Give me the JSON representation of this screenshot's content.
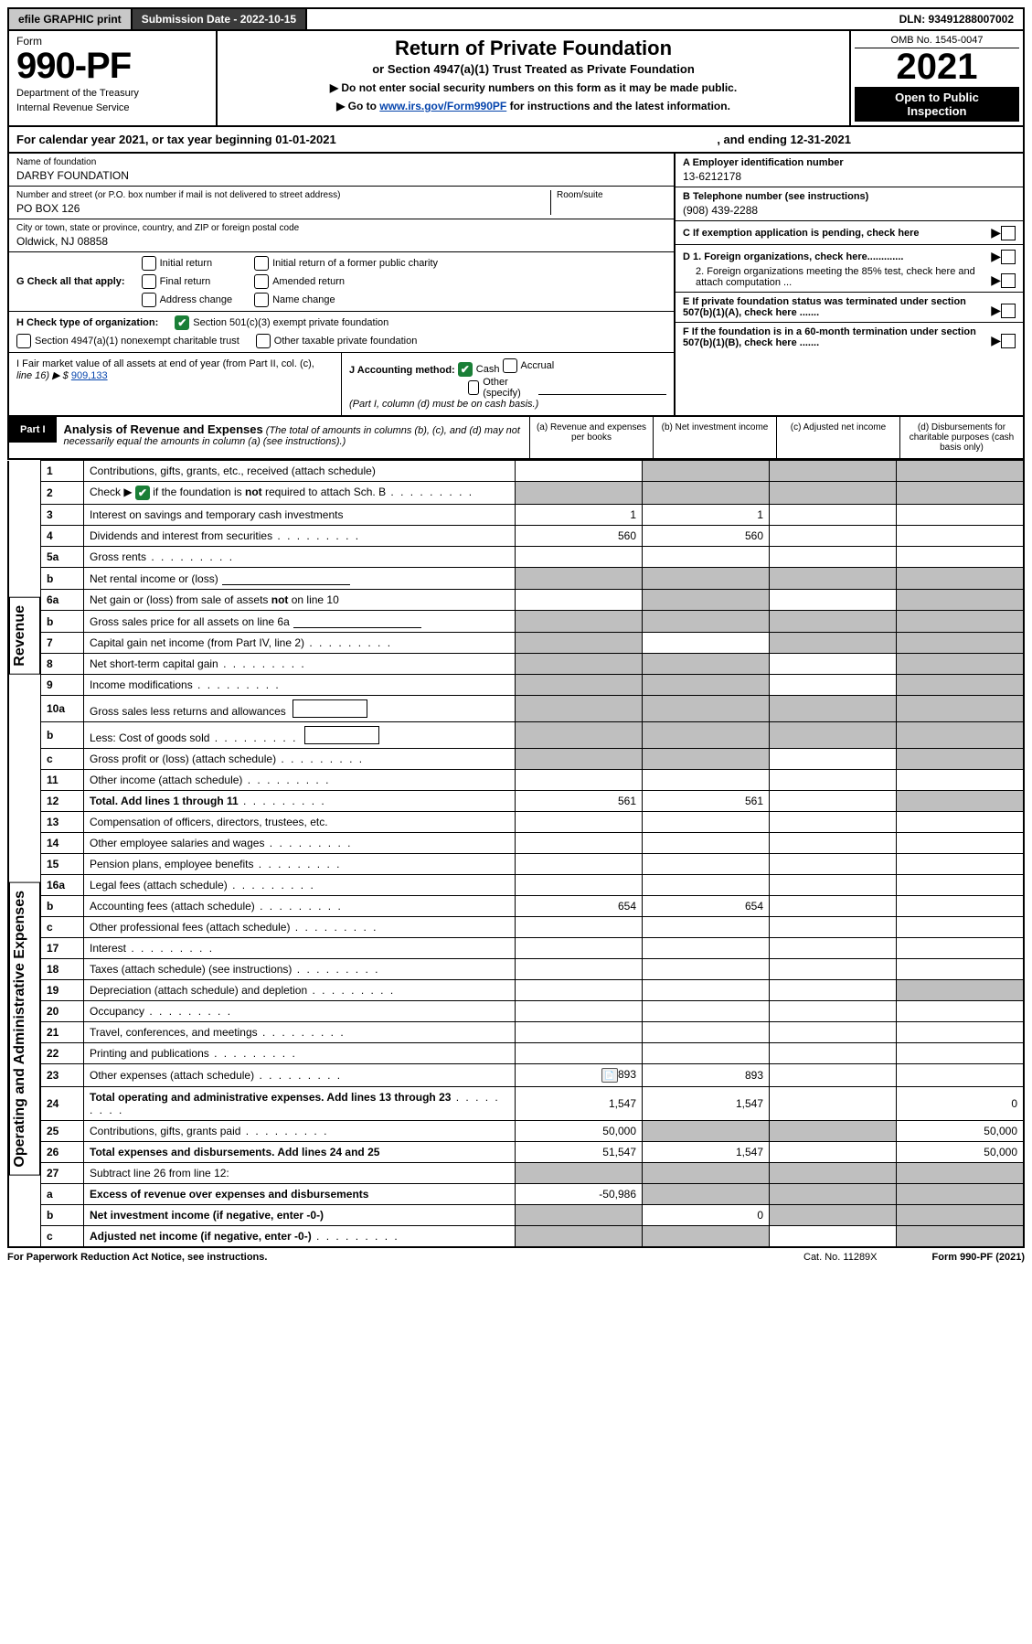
{
  "topbar": {
    "efile": "efile GRAPHIC print",
    "submission_label": "Submission Date - 2022-10-15",
    "dln": "DLN: 93491288007002"
  },
  "header": {
    "form_label": "Form",
    "form_number": "990-PF",
    "dept1": "Department of the Treasury",
    "dept2": "Internal Revenue Service",
    "title": "Return of Private Foundation",
    "subtitle": "or Section 4947(a)(1) Trust Treated as Private Foundation",
    "instr1_pre": "▶ Do not enter social security numbers on this form as it may be made public.",
    "instr2_pre": "▶ Go to ",
    "instr2_link": "www.irs.gov/Form990PF",
    "instr2_post": " for instructions and the latest information.",
    "omb": "OMB No. 1545-0047",
    "year": "2021",
    "open1": "Open to Public",
    "open2": "Inspection"
  },
  "cal": {
    "text": "For calendar year 2021, or tax year beginning 01-01-2021",
    "ending": ", and ending 12-31-2021"
  },
  "info": {
    "name_label": "Name of foundation",
    "name": "DARBY FOUNDATION",
    "addr_label": "Number and street (or P.O. box number if mail is not delivered to street address)",
    "addr": "PO BOX 126",
    "room_label": "Room/suite",
    "city_label": "City or town, state or province, country, and ZIP or foreign postal code",
    "city": "Oldwick, NJ  08858",
    "A_label": "A Employer identification number",
    "A_val": "13-6212178",
    "B_label": "B Telephone number (see instructions)",
    "B_val": "(908) 439-2288",
    "C_label": "C If exemption application is pending, check here",
    "D1_label": "D 1. Foreign organizations, check here.............",
    "D2_label": "2. Foreign organizations meeting the 85% test, check here and attach computation ...",
    "E_label": "E If private foundation status was terminated under section 507(b)(1)(A), check here .......",
    "F_label": "F If the foundation is in a 60-month termination under section 507(b)(1)(B), check here ......."
  },
  "G": {
    "label": "G Check all that apply:",
    "opts": [
      "Initial return",
      "Final return",
      "Address change",
      "Initial return of a former public charity",
      "Amended return",
      "Name change"
    ]
  },
  "H": {
    "label": "H Check type of organization:",
    "opt1": "Section 501(c)(3) exempt private foundation",
    "opt2": "Section 4947(a)(1) nonexempt charitable trust",
    "opt3": "Other taxable private foundation"
  },
  "I": {
    "label1": "I Fair market value of all assets at end of year (from Part II, col. (c),",
    "label2": "line 16) ▶ $",
    "val": "909,133"
  },
  "J": {
    "label": "J Accounting method:",
    "cash": "Cash",
    "accrual": "Accrual",
    "other": "Other (specify)",
    "note": "(Part I, column (d) must be on cash basis.)"
  },
  "part1": {
    "tag": "Part I",
    "title": "Analysis of Revenue and Expenses",
    "note": "(The total of amounts in columns (b), (c), and (d) may not necessarily equal the amounts in column (a) (see instructions).)",
    "col_a": "(a) Revenue and expenses per books",
    "col_b": "(b) Net investment income",
    "col_c": "(c) Adjusted net income",
    "col_d": "(d) Disbursements for charitable purposes (cash basis only)"
  },
  "sections": {
    "rev": "Revenue",
    "exp": "Operating and Administrative Expenses"
  },
  "rows": {
    "1": {
      "n": "1",
      "t": "Contributions, gifts, grants, etc., received (attach schedule)",
      "a": "",
      "b": "",
      "c": "",
      "d": "",
      "sb": true,
      "sc": true,
      "sd": true
    },
    "2": {
      "n": "2",
      "t": "Check ▶ ☑ if the foundation is not required to attach Sch. B",
      "a": "",
      "b": "",
      "c": "",
      "d": "",
      "sa": true,
      "sb": true,
      "sc": true,
      "sd": true,
      "dots": true
    },
    "3": {
      "n": "3",
      "t": "Interest on savings and temporary cash investments",
      "a": "1",
      "b": "1"
    },
    "4": {
      "n": "4",
      "t": "Dividends and interest from securities",
      "a": "560",
      "b": "560",
      "dots": true
    },
    "5a": {
      "n": "5a",
      "t": "Gross rents",
      "dots": true
    },
    "5b": {
      "n": "b",
      "t": "Net rental income or (loss)",
      "ul": true,
      "sa": true,
      "sb": true,
      "sc": true,
      "sd": true
    },
    "6a": {
      "n": "6a",
      "t": "Net gain or (loss) from sale of assets not on line 10",
      "sb": true,
      "sd": true
    },
    "6b": {
      "n": "b",
      "t": "Gross sales price for all assets on line 6a",
      "ul": true,
      "sa": true,
      "sb": true,
      "sc": true,
      "sd": true
    },
    "7": {
      "n": "7",
      "t": "Capital gain net income (from Part IV, line 2)",
      "dots": true,
      "sa": true,
      "sc": true,
      "sd": true
    },
    "8": {
      "n": "8",
      "t": "Net short-term capital gain",
      "dots": true,
      "sa": true,
      "sb": true,
      "sd": true
    },
    "9": {
      "n": "9",
      "t": "Income modifications",
      "dots": true,
      "sa": true,
      "sb": true,
      "sd": true
    },
    "10a": {
      "n": "10a",
      "t": "Gross sales less returns and allowances",
      "box": true,
      "sa": true,
      "sb": true,
      "sc": true,
      "sd": true
    },
    "10b": {
      "n": "b",
      "t": "Less: Cost of goods sold",
      "dots": true,
      "box": true,
      "sa": true,
      "sb": true,
      "sc": true,
      "sd": true
    },
    "10c": {
      "n": "c",
      "t": "Gross profit or (loss) (attach schedule)",
      "dots": true,
      "sa": true,
      "sb": true,
      "sd": true
    },
    "11": {
      "n": "11",
      "t": "Other income (attach schedule)",
      "dots": true
    },
    "12": {
      "n": "12",
      "t": "Total. Add lines 1 through 11",
      "bold": true,
      "dots": true,
      "a": "561",
      "b": "561",
      "sd": true
    },
    "13": {
      "n": "13",
      "t": "Compensation of officers, directors, trustees, etc."
    },
    "14": {
      "n": "14",
      "t": "Other employee salaries and wages",
      "dots": true
    },
    "15": {
      "n": "15",
      "t": "Pension plans, employee benefits",
      "dots": true
    },
    "16a": {
      "n": "16a",
      "t": "Legal fees (attach schedule)",
      "dots": true
    },
    "16b": {
      "n": "b",
      "t": "Accounting fees (attach schedule)",
      "dots": true,
      "a": "654",
      "b": "654"
    },
    "16c": {
      "n": "c",
      "t": "Other professional fees (attach schedule)",
      "dots": true
    },
    "17": {
      "n": "17",
      "t": "Interest",
      "dots": true
    },
    "18": {
      "n": "18",
      "t": "Taxes (attach schedule) (see instructions)",
      "dots": true
    },
    "19": {
      "n": "19",
      "t": "Depreciation (attach schedule) and depletion",
      "dots": true,
      "sd": true
    },
    "20": {
      "n": "20",
      "t": "Occupancy",
      "dots": true
    },
    "21": {
      "n": "21",
      "t": "Travel, conferences, and meetings",
      "dots": true
    },
    "22": {
      "n": "22",
      "t": "Printing and publications",
      "dots": true
    },
    "23": {
      "n": "23",
      "t": "Other expenses (attach schedule)",
      "dots": true,
      "icon": true,
      "a": "893",
      "b": "893"
    },
    "24": {
      "n": "24",
      "t": "Total operating and administrative expenses. Add lines 13 through 23",
      "bold": true,
      "dots": true,
      "a": "1,547",
      "b": "1,547",
      "d": "0"
    },
    "25": {
      "n": "25",
      "t": "Contributions, gifts, grants paid",
      "dots": true,
      "a": "50,000",
      "sb": true,
      "sc": true,
      "d": "50,000"
    },
    "26": {
      "n": "26",
      "t": "Total expenses and disbursements. Add lines 24 and 25",
      "bold": true,
      "a": "51,547",
      "b": "1,547",
      "d": "50,000"
    },
    "27": {
      "n": "27",
      "t": "Subtract line 26 from line 12:",
      "sa": true,
      "sb": true,
      "sc": true,
      "sd": true
    },
    "27a": {
      "n": "a",
      "t": "Excess of revenue over expenses and disbursements",
      "bold": true,
      "a": "-50,986",
      "sb": true,
      "sc": true,
      "sd": true
    },
    "27b": {
      "n": "b",
      "t": "Net investment income (if negative, enter -0-)",
      "bold": true,
      "sa": true,
      "b": "0",
      "sc": true,
      "sd": true
    },
    "27c": {
      "n": "c",
      "t": "Adjusted net income (if negative, enter -0-)",
      "bold": true,
      "dots": true,
      "sa": true,
      "sb": true,
      "sd": true
    }
  },
  "footer": {
    "left": "For Paperwork Reduction Act Notice, see instructions.",
    "mid": "Cat. No. 11289X",
    "right": "Form 990-PF (2021)"
  },
  "style": {
    "colors": {
      "bg": "#ffffff",
      "text": "#000000",
      "link": "#0645ad",
      "shade": "#bfbfbf",
      "subshade": "#e0e0e0",
      "topbar_dark": "#3b3b3b",
      "topbar_grey": "#c8c8c8",
      "check_green": "#1a7f37"
    },
    "fontsize": {
      "base": 12,
      "title": 22,
      "form_number": 40,
      "year": 40,
      "small": 11,
      "tiny": 10
    }
  }
}
